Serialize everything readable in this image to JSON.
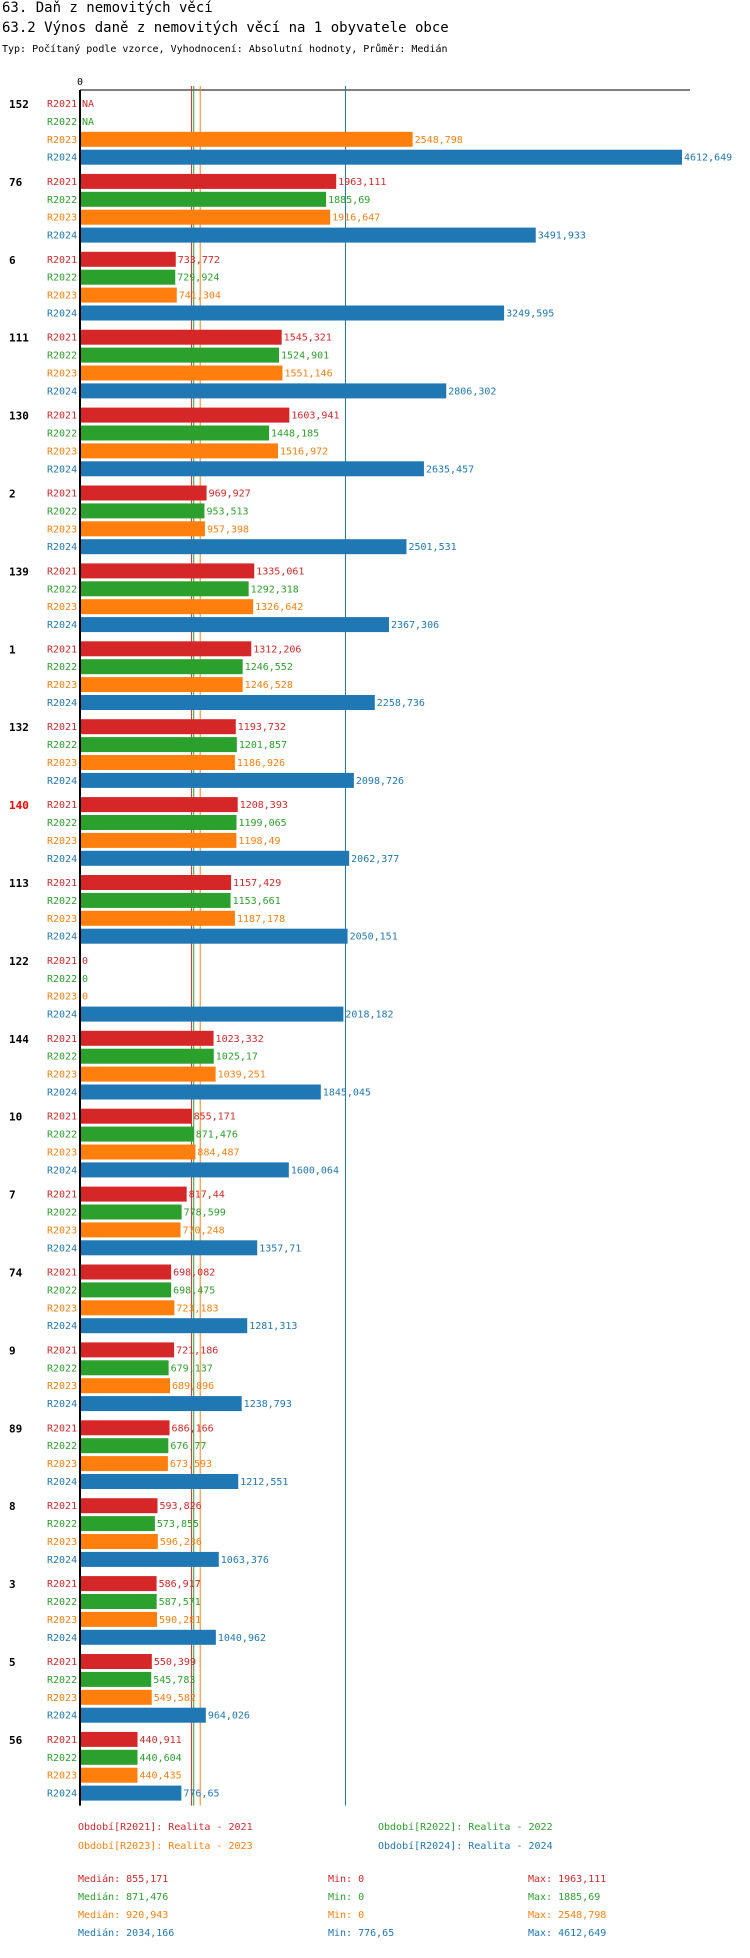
{
  "header": {
    "title": "63. Daň z nemovitých věcí",
    "subtitle": "63.2 Výnos daně z nemovitých věcí na 1 obyvatele obce",
    "meta": "Typ: Počítaný podle vzorce, Vyhodnocení: Absolutní hodnoty, Průměr: Medián"
  },
  "colors": {
    "R2021": "#d62728",
    "R2022": "#2ca02c",
    "R2023": "#ff7f0e",
    "R2024": "#1f77b4",
    "highlight": "#ff0000"
  },
  "chart_data": {
    "type": "bar",
    "orientation": "horizontal",
    "axis_zero_label": "0",
    "xlim": [
      0,
      4612.649
    ],
    "highlighted_group": "140",
    "series_names": [
      "R2021",
      "R2022",
      "R2023",
      "R2024"
    ],
    "groups": [
      {
        "label": "152",
        "values": [
          null,
          null,
          2548.798,
          4612.649
        ],
        "labels": [
          "NA",
          "NA",
          "2548,798",
          "4612,649"
        ]
      },
      {
        "label": "76",
        "values": [
          1963.111,
          1885.69,
          1916.647,
          3491.933
        ],
        "labels": [
          "1963,111",
          "1885,69",
          "1916,647",
          "3491,933"
        ]
      },
      {
        "label": "6",
        "values": [
          733.772,
          729.924,
          741.304,
          3249.595
        ],
        "labels": [
          "733,772",
          "729,924",
          "741,304",
          "3249,595"
        ]
      },
      {
        "label": "111",
        "values": [
          1545.321,
          1524.901,
          1551.146,
          2806.302
        ],
        "labels": [
          "1545,321",
          "1524,901",
          "1551,146",
          "2806,302"
        ]
      },
      {
        "label": "130",
        "values": [
          1603.941,
          1448.185,
          1516.972,
          2635.457
        ],
        "labels": [
          "1603,941",
          "1448,185",
          "1516,972",
          "2635,457"
        ]
      },
      {
        "label": "2",
        "values": [
          969.927,
          953.513,
          957.398,
          2501.531
        ],
        "labels": [
          "969,927",
          "953,513",
          "957,398",
          "2501,531"
        ]
      },
      {
        "label": "139",
        "values": [
          1335.061,
          1292.318,
          1326.642,
          2367.306
        ],
        "labels": [
          "1335,061",
          "1292,318",
          "1326,642",
          "2367,306"
        ]
      },
      {
        "label": "1",
        "values": [
          1312.206,
          1246.552,
          1246.528,
          2258.736
        ],
        "labels": [
          "1312,206",
          "1246,552",
          "1246,528",
          "2258,736"
        ]
      },
      {
        "label": "132",
        "values": [
          1193.732,
          1201.857,
          1186.926,
          2098.726
        ],
        "labels": [
          "1193,732",
          "1201,857",
          "1186,926",
          "2098,726"
        ]
      },
      {
        "label": "140",
        "values": [
          1208.393,
          1199.065,
          1198.49,
          2062.377
        ],
        "labels": [
          "1208,393",
          "1199,065",
          "1198,49",
          "2062,377"
        ]
      },
      {
        "label": "113",
        "values": [
          1157.429,
          1153.661,
          1187.178,
          2050.151
        ],
        "labels": [
          "1157,429",
          "1153,661",
          "1187,178",
          "2050,151"
        ]
      },
      {
        "label": "122",
        "values": [
          0,
          0,
          0,
          2018.182
        ],
        "labels": [
          "0",
          "0",
          "0",
          "2018,182"
        ]
      },
      {
        "label": "144",
        "values": [
          1023.332,
          1025.17,
          1039.251,
          1845.045
        ],
        "labels": [
          "1023,332",
          "1025,17",
          "1039,251",
          "1845,045"
        ]
      },
      {
        "label": "10",
        "values": [
          855.171,
          871.476,
          884.487,
          1600.064
        ],
        "labels": [
          "855,171",
          "871,476",
          "884,487",
          "1600,064"
        ]
      },
      {
        "label": "7",
        "values": [
          817.44,
          778.599,
          770.248,
          1357.71
        ],
        "labels": [
          "817,44",
          "778,599",
          "770,248",
          "1357,71"
        ]
      },
      {
        "label": "74",
        "values": [
          698.082,
          698.475,
          723.183,
          1281.313
        ],
        "labels": [
          "698,082",
          "698,475",
          "723,183",
          "1281,313"
        ]
      },
      {
        "label": "9",
        "values": [
          721.186,
          679.137,
          689.896,
          1238.793
        ],
        "labels": [
          "721,186",
          "679,137",
          "689,896",
          "1238,793"
        ]
      },
      {
        "label": "89",
        "values": [
          686.166,
          676.77,
          673.593,
          1212.551
        ],
        "labels": [
          "686,166",
          "676,77",
          "673,593",
          "1212,551"
        ]
      },
      {
        "label": "8",
        "values": [
          593.826,
          573.855,
          596.236,
          1063.376
        ],
        "labels": [
          "593,826",
          "573,855",
          "596,236",
          "1063,376"
        ]
      },
      {
        "label": "3",
        "values": [
          586.917,
          587.571,
          590.281,
          1040.962
        ],
        "labels": [
          "586,917",
          "587,571",
          "590,281",
          "1040,962"
        ]
      },
      {
        "label": "5",
        "values": [
          550.399,
          545.783,
          549.582,
          964.026
        ],
        "labels": [
          "550,399",
          "545,783",
          "549,582",
          "964,026"
        ]
      },
      {
        "label": "56",
        "values": [
          440.911,
          440.604,
          440.435,
          776.65
        ],
        "labels": [
          "440,911",
          "440,604",
          "440,435",
          "776,65"
        ]
      }
    ],
    "medians": [
      855.171,
      871.476,
      920.943,
      2034.166
    ]
  },
  "legend": {
    "r2021": "Období[R2021]: Realita - 2021",
    "r2022": "Období[R2022]: Realita - 2022",
    "r2023": "Období[R2023]: Realita - 2023",
    "r2024": "Období[R2024]: Realita - 2024"
  },
  "stats": [
    {
      "median": "Medián: 855,171",
      "min": "Min: 0",
      "max": "Max: 1963,111"
    },
    {
      "median": "Medián: 871,476",
      "min": "Min: 0",
      "max": "Max: 1885,69"
    },
    {
      "median": "Medián: 920,943",
      "min": "Min: 0",
      "max": "Max: 2548,798"
    },
    {
      "median": "Medián: 2034,166",
      "min": "Min: 776,65",
      "max": "Max: 4612,649"
    }
  ]
}
